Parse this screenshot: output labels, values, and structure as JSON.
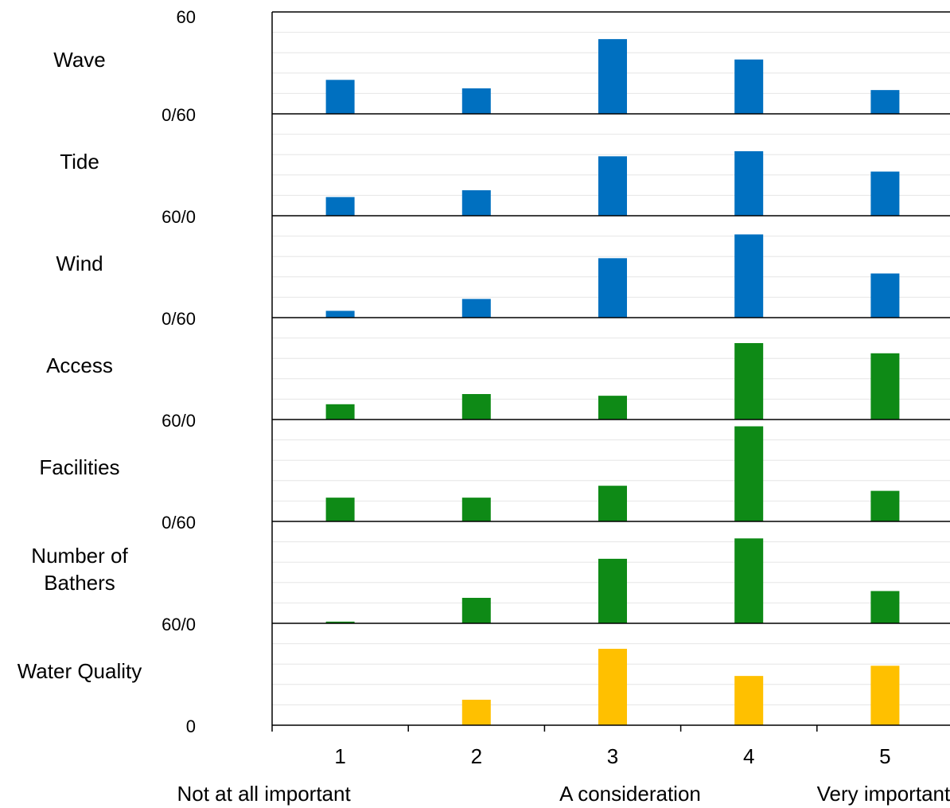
{
  "chart_data": {
    "type": "bar",
    "categories": [
      "1",
      "2",
      "3",
      "4",
      "5"
    ],
    "category_descriptions": [
      "Not at all important",
      null,
      "A consideration",
      null,
      "Very important"
    ],
    "ylim": [
      0,
      60
    ],
    "yticks": [
      0,
      12,
      24,
      36,
      48,
      60
    ],
    "grid": true,
    "boundary_labels": [
      "60",
      "0/60",
      "60/0",
      "0/60",
      "60/0",
      "0/60",
      "60/0",
      "0"
    ],
    "panels": [
      {
        "name": "Wave",
        "color": "#0070c0",
        "values": [
          20,
          15,
          44,
          32,
          14
        ]
      },
      {
        "name": "Tide",
        "color": "#0070c0",
        "values": [
          11,
          15,
          35,
          38,
          26
        ]
      },
      {
        "name": "Wind",
        "color": "#0070c0",
        "values": [
          4,
          11,
          35,
          49,
          26
        ]
      },
      {
        "name": "Access",
        "color": "#0e8a16",
        "values": [
          9,
          15,
          14,
          45,
          39
        ]
      },
      {
        "name": "Facilities",
        "color": "#0e8a16",
        "values": [
          14,
          14,
          21,
          56,
          18
        ]
      },
      {
        "name": "Number of Bathers",
        "color": "#0e8a16",
        "values": [
          1,
          15,
          38,
          50,
          19
        ]
      },
      {
        "name": "Water Quality",
        "color": "#ffc000",
        "values": [
          0,
          15,
          45,
          29,
          35
        ]
      }
    ]
  }
}
